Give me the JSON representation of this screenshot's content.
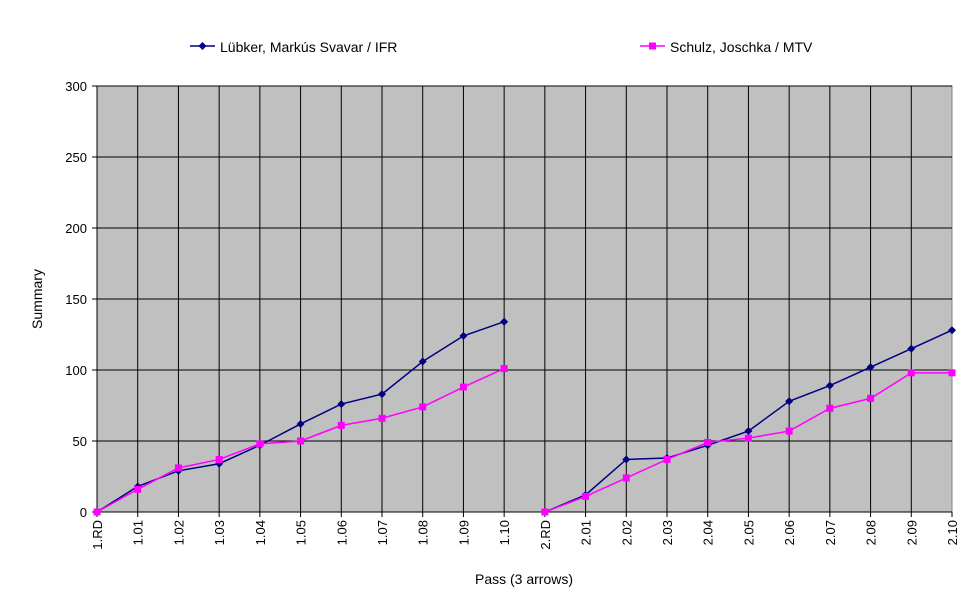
{
  "chart_data": {
    "type": "line",
    "x_label": "Pass (3 arrows)",
    "y_label": "Summary",
    "categories": [
      "1.RD",
      "1.01",
      "1.02",
      "1.03",
      "1.04",
      "1.05",
      "1.06",
      "1.07",
      "1.08",
      "1.09",
      "1.10",
      "2.RD",
      "2.01",
      "2.02",
      "2.03",
      "2.04",
      "2.05",
      "2.06",
      "2.07",
      "2.08",
      "2.09",
      "2.10"
    ],
    "series": [
      {
        "name": "Lübker, Markús Svavar / IFR",
        "color": "#000080",
        "marker": "diamond",
        "values": [
          0,
          18,
          29,
          34,
          47,
          62,
          76,
          83,
          106,
          124,
          134,
          0,
          12,
          37,
          38,
          47,
          57,
          78,
          89,
          102,
          115,
          128
        ]
      },
      {
        "name": "Schulz, Joschka / MTV",
        "color": "#ff00ff",
        "marker": "square",
        "values": [
          0,
          16,
          31,
          37,
          48,
          50,
          61,
          66,
          74,
          88,
          101,
          0,
          11,
          24,
          37,
          49,
          52,
          57,
          73,
          80,
          98,
          98
        ]
      }
    ],
    "ylim": [
      0,
      300
    ],
    "yticks": [
      0,
      50,
      100,
      150,
      200,
      250,
      300
    ],
    "grid": true
  }
}
